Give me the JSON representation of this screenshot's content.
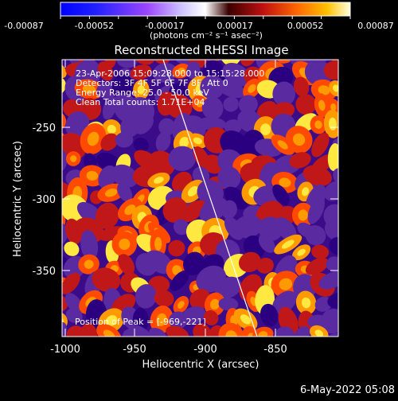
{
  "colorbar": {
    "ticks": [
      "-0.00087",
      "-0.00052",
      "-0.00017",
      "0.00017",
      "0.00052",
      "0.00087"
    ],
    "units_label": "(photons cm⁻² s⁻¹ asec⁻²)"
  },
  "title": "Reconstructed RHESSI Image",
  "info": [
    "23-Apr-2006 15:09:28.000 to 15:15:28.000",
    "Detectors: 3F 4F 5F 6F 7F 8F, Att 0",
    "Energy Range: 25.0 - 50.0 keV",
    "Clean     Total counts: 1.71E+04"
  ],
  "peak_text": "Position of Peak = [-969,-221]",
  "axes": {
    "x_label": "Heliocentric X (arcsec)",
    "y_label": "Heliocentric Y (arcsec)",
    "x_ticks": [
      "-1000",
      "-950",
      "-900",
      "-850"
    ],
    "y_ticks": [
      "-250",
      "-300",
      "-350"
    ]
  },
  "footer": "6-May-2022 05:08",
  "colors": {
    "background": "#000000",
    "limb_line": "#ffffff",
    "map_palette": [
      "#2b0080",
      "#5a2aa0",
      "#c01818",
      "#ff4a00",
      "#ff9a00",
      "#ffe840"
    ]
  }
}
